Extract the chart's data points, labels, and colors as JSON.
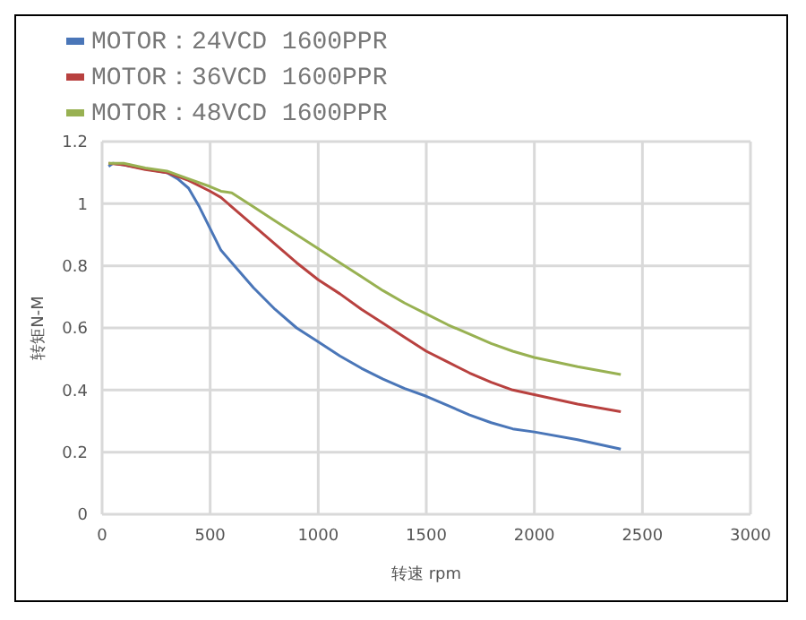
{
  "chart_data": {
    "type": "line",
    "xlabel": "转速 rpm",
    "ylabel": "转矩N-M",
    "xlim": [
      0,
      3000
    ],
    "xticks": [
      0,
      500,
      1000,
      1500,
      2000,
      2500,
      3000
    ],
    "ylim": [
      0,
      1.2
    ],
    "yticks": [
      0,
      0.2,
      0.4,
      0.6,
      0.8,
      1,
      1.2
    ],
    "grid": true,
    "legend": "top",
    "marker": "none",
    "line_style": "solid",
    "series": [
      {
        "name": "MOTOR：24VCD 1600PPR",
        "color": "#4a76b8",
        "x": [
          30,
          50,
          100,
          200,
          300,
          350,
          400,
          450,
          500,
          550,
          600,
          700,
          800,
          900,
          1000,
          1100,
          1200,
          1300,
          1400,
          1500,
          1600,
          1700,
          1800,
          1900,
          2000,
          2200,
          2400
        ],
        "values": [
          1.12,
          1.13,
          1.125,
          null,
          1.1,
          1.08,
          1.05,
          0.99,
          0.92,
          0.85,
          0.81,
          0.73,
          0.66,
          0.6,
          0.555,
          0.51,
          0.47,
          0.435,
          0.405,
          0.38,
          0.35,
          0.32,
          0.295,
          0.275,
          0.265,
          0.24,
          0.21
        ]
      },
      {
        "name": "MOTOR：36VCD 1600PPR",
        "color": "#b8413f",
        "x": [
          30,
          100,
          200,
          300,
          400,
          500,
          550,
          600,
          700,
          800,
          900,
          1000,
          1100,
          1200,
          1300,
          1400,
          1500,
          1600,
          1700,
          1800,
          1900,
          2000,
          2200,
          2400
        ],
        "values": [
          1.13,
          1.125,
          1.11,
          1.1,
          1.075,
          1.04,
          1.02,
          0.99,
          0.93,
          0.87,
          0.81,
          0.755,
          0.71,
          0.66,
          0.615,
          0.57,
          0.525,
          0.49,
          0.455,
          0.425,
          0.4,
          0.385,
          0.355,
          0.33
        ]
      },
      {
        "name": "MOTOR：48VCD 1600PPR",
        "color": "#98b152",
        "x": [
          30,
          100,
          200,
          300,
          400,
          500,
          550,
          600,
          700,
          800,
          900,
          1000,
          1100,
          1200,
          1300,
          1400,
          1500,
          1600,
          1700,
          1800,
          1900,
          2000,
          2200,
          2400
        ],
        "values": [
          1.13,
          1.13,
          1.115,
          1.105,
          1.08,
          1.055,
          1.04,
          1.035,
          0.99,
          0.945,
          0.9,
          0.855,
          0.81,
          0.765,
          0.72,
          0.68,
          0.645,
          0.61,
          0.58,
          0.55,
          0.525,
          0.505,
          0.475,
          0.45
        ]
      }
    ]
  }
}
